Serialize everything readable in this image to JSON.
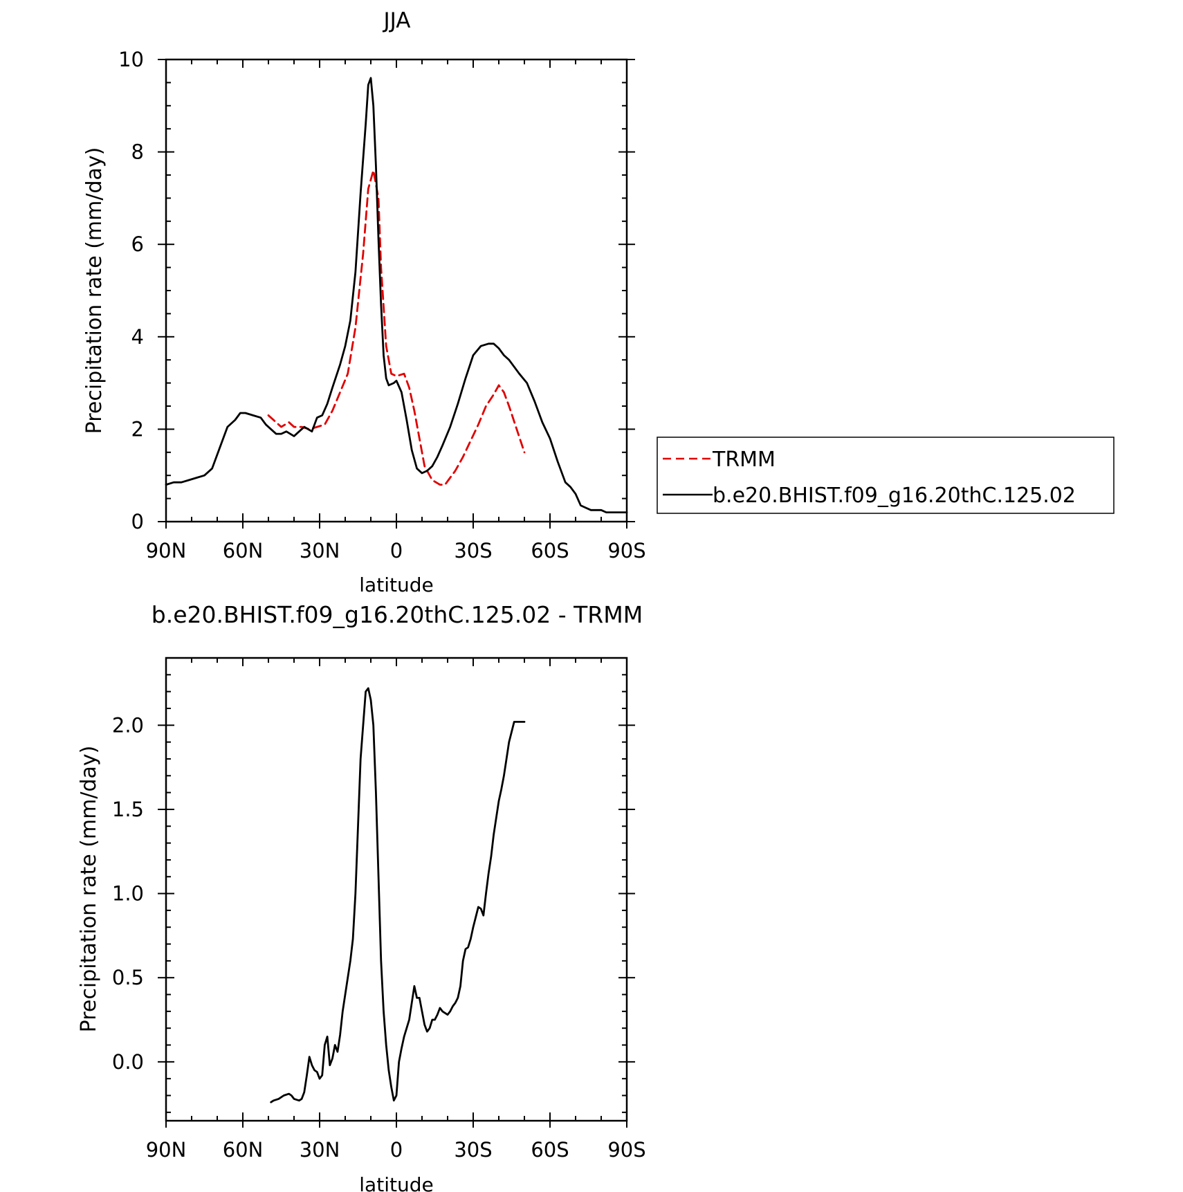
{
  "chart_data": [
    {
      "type": "line",
      "title": "JJA",
      "xlabel": "latitude",
      "ylabel": "Precipitation rate (mm/day)",
      "xlim": [
        90,
        -90
      ],
      "ylim": [
        0,
        10
      ],
      "x_ticks": [
        90,
        60,
        30,
        0,
        -30,
        -60,
        -90
      ],
      "x_tick_labels": [
        "90N",
        "60N",
        "30N",
        "0",
        "30S",
        "60S",
        "90S"
      ],
      "y_ticks": [
        0,
        2,
        4,
        6,
        8,
        10
      ],
      "y_tick_labels": [
        "0",
        "2",
        "4",
        "6",
        "8",
        "10"
      ],
      "legend_placement": "outside-right",
      "series": [
        {
          "name": "TRMM",
          "color": "#e00000",
          "dash": true,
          "x": [
            50,
            47,
            45,
            42,
            40,
            37,
            34,
            31,
            28,
            25,
            22,
            19,
            16,
            13,
            11,
            9,
            7,
            6,
            4,
            2,
            0,
            -3,
            -5,
            -7,
            -9,
            -11,
            -14,
            -17,
            -19,
            -21,
            -23,
            -26,
            -29,
            -32,
            -35,
            -38,
            -40,
            -42,
            -44,
            -47,
            -50
          ],
          "y": [
            2.3,
            2.15,
            2.05,
            2.15,
            2.05,
            2.05,
            2.0,
            2.05,
            2.1,
            2.4,
            2.8,
            3.2,
            4.2,
            5.8,
            7.2,
            7.6,
            7.0,
            5.5,
            3.8,
            3.2,
            3.15,
            3.2,
            2.9,
            2.4,
            1.8,
            1.2,
            0.9,
            0.8,
            0.8,
            0.95,
            1.1,
            1.4,
            1.75,
            2.1,
            2.5,
            2.75,
            2.95,
            2.8,
            2.5,
            2.0,
            1.5
          ]
        },
        {
          "name": "b.e20.BHIST.f09_g16.20thC.125.02",
          "color": "#000000",
          "dash": false,
          "x": [
            90,
            87,
            84,
            81,
            78,
            75,
            72,
            69,
            66,
            63,
            61,
            59,
            56,
            53,
            51,
            49,
            47,
            45,
            43,
            40,
            38,
            36,
            33,
            31,
            29,
            27,
            25,
            22,
            20,
            18,
            16,
            14,
            12,
            11,
            10,
            9,
            8,
            7,
            6,
            5,
            4,
            3,
            1,
            0,
            -2,
            -4,
            -6,
            -8,
            -10,
            -12,
            -14,
            -16,
            -18,
            -21,
            -24,
            -27,
            -30,
            -33,
            -36,
            -38,
            -40,
            -42,
            -44,
            -46,
            -48,
            -51,
            -54,
            -57,
            -60,
            -63,
            -66,
            -68,
            -70,
            -72,
            -74,
            -76,
            -78,
            -80,
            -82,
            -84,
            -86,
            -88,
            -90
          ],
          "y": [
            0.8,
            0.85,
            0.85,
            0.9,
            0.95,
            1.0,
            1.15,
            1.6,
            2.05,
            2.2,
            2.35,
            2.35,
            2.3,
            2.25,
            2.1,
            2.0,
            1.9,
            1.9,
            1.95,
            1.85,
            1.95,
            2.05,
            1.95,
            2.25,
            2.3,
            2.55,
            2.9,
            3.4,
            3.8,
            4.35,
            5.4,
            7.1,
            8.6,
            9.45,
            9.6,
            9.0,
            7.7,
            6.1,
            4.7,
            3.6,
            3.1,
            2.95,
            3.0,
            3.05,
            2.8,
            2.2,
            1.55,
            1.15,
            1.05,
            1.1,
            1.2,
            1.4,
            1.65,
            2.05,
            2.55,
            3.1,
            3.6,
            3.8,
            3.85,
            3.85,
            3.75,
            3.6,
            3.5,
            3.35,
            3.2,
            3.0,
            2.6,
            2.15,
            1.8,
            1.3,
            0.85,
            0.75,
            0.6,
            0.35,
            0.3,
            0.25,
            0.25,
            0.25,
            0.2,
            0.2,
            0.2,
            0.2,
            0.2
          ]
        }
      ]
    },
    {
      "type": "line",
      "title": "b.e20.BHIST.f09_g16.20thC.125.02 - TRMM",
      "xlabel": "latitude",
      "ylabel": "Precipitation rate (mm/day)",
      "xlim": [
        90,
        -90
      ],
      "ylim": [
        -0.35,
        2.4
      ],
      "x_ticks": [
        90,
        60,
        30,
        0,
        -30,
        -60,
        -90
      ],
      "x_tick_labels": [
        "90N",
        "60N",
        "30N",
        "0",
        "30S",
        "60S",
        "90S"
      ],
      "y_ticks": [
        0,
        0.5,
        1,
        1.5,
        2
      ],
      "y_tick_labels": [
        "0.0",
        "0.5",
        "1.0",
        "1.5",
        "2.0"
      ],
      "series": [
        {
          "color": "#000000",
          "dash": false,
          "x": [
            49,
            48,
            46,
            44,
            42,
            41,
            40,
            38,
            37,
            36,
            35,
            34,
            33,
            32,
            31,
            30,
            29,
            28,
            27,
            26,
            25,
            24,
            23,
            22,
            21,
            20,
            19,
            18,
            17,
            16,
            15,
            14,
            12,
            11,
            10,
            9,
            8,
            7,
            6,
            5,
            4,
            3,
            2,
            1,
            0,
            -1,
            -2,
            -3,
            -4,
            -5,
            -6,
            -7,
            -8,
            -9,
            -10,
            -11,
            -12,
            -13,
            -14,
            -15,
            -16,
            -17,
            -18,
            -19,
            -20,
            -21,
            -22,
            -23,
            -24,
            -25,
            -26,
            -27,
            -28,
            -29,
            -30,
            -31,
            -32,
            -33,
            -34,
            -35,
            -36,
            -37,
            -38,
            -39,
            -40,
            -41,
            -42,
            -43,
            -44,
            -45,
            -46,
            -47,
            -48,
            -49,
            -50
          ],
          "y": [
            -0.24,
            -0.23,
            -0.22,
            -0.2,
            -0.19,
            -0.2,
            -0.22,
            -0.23,
            -0.22,
            -0.18,
            -0.08,
            0.03,
            -0.02,
            -0.05,
            -0.06,
            -0.1,
            -0.08,
            0.1,
            0.15,
            -0.02,
            0.02,
            0.1,
            0.06,
            0.16,
            0.3,
            0.4,
            0.5,
            0.6,
            0.73,
            1.0,
            1.4,
            1.8,
            2.2,
            2.22,
            2.15,
            2.0,
            1.6,
            1.1,
            0.6,
            0.3,
            0.1,
            -0.05,
            -0.15,
            -0.23,
            -0.2,
            0.0,
            0.08,
            0.15,
            0.2,
            0.25,
            0.35,
            0.45,
            0.38,
            0.38,
            0.3,
            0.22,
            0.18,
            0.2,
            0.25,
            0.25,
            0.28,
            0.32,
            0.3,
            0.29,
            0.28,
            0.3,
            0.33,
            0.35,
            0.38,
            0.45,
            0.6,
            0.67,
            0.68,
            0.73,
            0.8,
            0.86,
            0.92,
            0.91,
            0.87,
            1.0,
            1.12,
            1.22,
            1.35,
            1.45,
            1.55,
            1.62,
            1.7,
            1.8,
            1.9,
            1.96,
            2.02,
            2.02,
            2.02,
            2.02,
            2.02
          ]
        }
      ]
    }
  ]
}
